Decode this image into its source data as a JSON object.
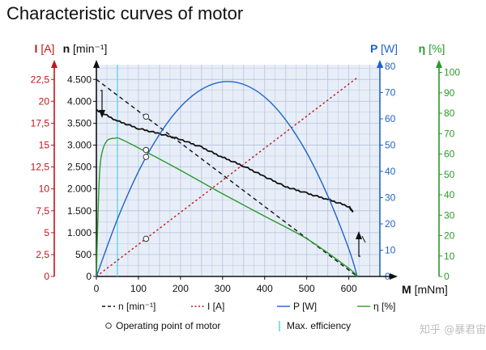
{
  "chart_data": {
    "type": "line",
    "title": "Characteristic curves of motor",
    "xlabel": {
      "name": "M",
      "unit": "[mNm]"
    },
    "xlim": [
      0,
      650
    ],
    "xticks": [
      0,
      100,
      200,
      300,
      400,
      500,
      600
    ],
    "grid": true,
    "axes": {
      "current": {
        "name": "I",
        "unit": "[A]",
        "color": "#c0161b",
        "range": [
          0,
          24
        ],
        "ticks": [
          0,
          2.5,
          5,
          7.5,
          10,
          12.5,
          15,
          17.5,
          20,
          22.5
        ],
        "tick_labels": [
          "0",
          "2,5",
          "5",
          "7,5",
          "10",
          "12,5",
          "15",
          "17,5",
          "20",
          "22,5"
        ]
      },
      "speed": {
        "name": "n",
        "unit": "[min⁻¹]",
        "color": "#111111",
        "range": [
          0,
          4800
        ],
        "ticks": [
          0,
          500,
          1000,
          1500,
          2000,
          2500,
          3000,
          3500,
          4000,
          4500
        ],
        "tick_labels": [
          "0",
          "500",
          "1.000",
          "1.500",
          "2.000",
          "2.500",
          "3.000",
          "3.500",
          "4.000",
          "4.500"
        ]
      },
      "power": {
        "name": "P",
        "unit": "[W]",
        "color": "#1f64c8",
        "range": [
          0,
          80
        ],
        "ticks": [
          0,
          10,
          20,
          30,
          40,
          50,
          60,
          70,
          80
        ],
        "tick_labels": [
          "0",
          "10",
          "20",
          "30",
          "40",
          "50",
          "60",
          "70",
          "80"
        ]
      },
      "efficiency": {
        "name": "η",
        "unit": "[%]",
        "color": "#2a9a2a",
        "range": [
          0,
          103
        ],
        "ticks": [
          0,
          10,
          20,
          30,
          40,
          50,
          60,
          70,
          80,
          90,
          100
        ],
        "tick_labels": [
          "0",
          "10",
          "20",
          "30",
          "40",
          "50",
          "60",
          "70",
          "80",
          "90",
          "100"
        ]
      }
    },
    "series": [
      {
        "key": "n_theory",
        "legend": "n [min⁻¹]",
        "axis": "speed",
        "style": "dashed",
        "color": "#111111",
        "x": [
          0,
          620
        ],
        "y": [
          4500,
          0
        ]
      },
      {
        "key": "n_measured",
        "legend": "",
        "axis": "speed",
        "style": "solid",
        "color": "#111111",
        "x": [
          0,
          50,
          100,
          150,
          200,
          250,
          300,
          350,
          400,
          450,
          500,
          550,
          600,
          610
        ],
        "y": [
          3800,
          3550,
          3380,
          3260,
          3130,
          2950,
          2720,
          2520,
          2280,
          2050,
          1900,
          1760,
          1600,
          1470
        ]
      },
      {
        "key": "I",
        "legend": "I [A]",
        "axis": "current",
        "style": "dotted",
        "color": "#c0161b",
        "x": [
          0,
          620
        ],
        "y": [
          0,
          22.7
        ]
      },
      {
        "key": "P",
        "legend": "P [W]",
        "axis": "power",
        "style": "solid",
        "color": "#1f64c8",
        "x": [
          0,
          50,
          100,
          150,
          200,
          250,
          300,
          350,
          400,
          450,
          500,
          550,
          600,
          620
        ],
        "y": [
          0,
          21.8,
          39.9,
          54.1,
          64.6,
          71.2,
          74.1,
          73.1,
          68.3,
          59.6,
          47.1,
          30.7,
          10.5,
          0
        ]
      },
      {
        "key": "eta",
        "legend": "η [%]",
        "axis": "efficiency",
        "style": "solid",
        "color": "#2a9a2a",
        "x": [
          0,
          3,
          8,
          15,
          25,
          35,
          45,
          55,
          100,
          200,
          300,
          400,
          500,
          600,
          620
        ],
        "y": [
          0,
          25,
          52,
          62,
          66.5,
          67.5,
          67.8,
          67.6,
          63,
          52,
          40.5,
          29.5,
          18.5,
          4,
          0
        ]
      }
    ],
    "operating_points": {
      "legend": "Operating point of motor",
      "points": [
        {
          "x": 118,
          "axis": "speed",
          "y": 3650
        },
        {
          "x": 118,
          "axis": "current",
          "y": 4.3
        },
        {
          "x": 118,
          "axis": "efficiency",
          "y": 62
        },
        {
          "x": 118,
          "axis": "power",
          "y": 45.5
        }
      ]
    },
    "max_efficiency": {
      "legend": "Max. efficiency",
      "x": 50,
      "color": "#4fd1de"
    },
    "plot_background": "#e8eef8"
  },
  "watermark": "知乎 @暴君宙斯"
}
